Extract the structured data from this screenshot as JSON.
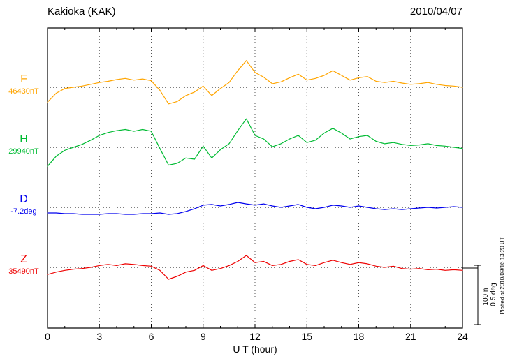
{
  "chart_data": {
    "type": "line",
    "station": "Kakioka (KAK)",
    "date": "2010/04/07",
    "xlabel": "U T (hour)",
    "x_ticks": [
      0,
      3,
      6,
      9,
      12,
      15,
      18,
      21,
      24
    ],
    "x_range": [
      0,
      24
    ],
    "x_step_hours": 0.5,
    "grid": "dotted-vertical-every-3h",
    "scale_bar": {
      "nT": "100 nT",
      "deg": "0.5 deg",
      "div_nT": 100,
      "div_deg": 0.5
    },
    "plotted_at": "Plotted at 2010/09/16 13:20 UT",
    "series": [
      {
        "name": "F",
        "baseline": "46430nT",
        "unit": "nT",
        "color": "#ffa500",
        "values": [
          -25,
          -10,
          -2,
          0,
          2,
          5,
          8,
          10,
          13,
          15,
          12,
          14,
          11,
          -5,
          -28,
          -24,
          -14,
          -8,
          2,
          -14,
          -2,
          8,
          28,
          45,
          25,
          17,
          6,
          9,
          16,
          22,
          12,
          15,
          20,
          28,
          20,
          12,
          16,
          18,
          10,
          8,
          10,
          7,
          5,
          6,
          8,
          5,
          3,
          2,
          0
        ]
      },
      {
        "name": "H",
        "baseline": "29940nT",
        "unit": "nT",
        "color": "#00bb33",
        "values": [
          -32,
          -15,
          -5,
          0,
          5,
          12,
          20,
          25,
          28,
          30,
          27,
          30,
          27,
          -2,
          -30,
          -27,
          -18,
          -20,
          2,
          -18,
          -4,
          6,
          28,
          48,
          20,
          14,
          1,
          6,
          14,
          20,
          8,
          12,
          24,
          32,
          24,
          14,
          18,
          20,
          10,
          6,
          8,
          5,
          3,
          4,
          6,
          3,
          2,
          0,
          -2
        ]
      },
      {
        "name": "D",
        "baseline": "-7.2deg",
        "unit": "deg",
        "color": "#0000ee",
        "values": [
          -0.047,
          -0.047,
          -0.053,
          -0.053,
          -0.059,
          -0.059,
          -0.059,
          -0.053,
          -0.053,
          -0.059,
          -0.059,
          -0.053,
          -0.053,
          -0.047,
          -0.059,
          -0.053,
          -0.035,
          -0.012,
          0.018,
          0.024,
          0.012,
          0.024,
          0.041,
          0.029,
          0.018,
          0.029,
          0.012,
          0,
          0.012,
          0.024,
          0,
          -0.012,
          0,
          0.018,
          0.012,
          0,
          0.012,
          0,
          -0.012,
          -0.018,
          -0.012,
          -0.018,
          -0.012,
          -0.006,
          0,
          -0.006,
          0,
          0.006,
          0
        ]
      },
      {
        "name": "Z",
        "baseline": "35490nT",
        "unit": "nT",
        "color": "#ee0000",
        "values": [
          -12,
          -8,
          -5,
          -3,
          -2,
          0,
          3,
          5,
          3,
          6,
          5,
          3,
          2,
          -5,
          -20,
          -15,
          -8,
          -5,
          3,
          -5,
          -2,
          3,
          10,
          20,
          8,
          10,
          3,
          5,
          10,
          13,
          5,
          3,
          8,
          12,
          8,
          5,
          8,
          6,
          2,
          0,
          2,
          -2,
          -3,
          -2,
          -4,
          -3,
          -5,
          -4,
          -5
        ]
      }
    ]
  }
}
